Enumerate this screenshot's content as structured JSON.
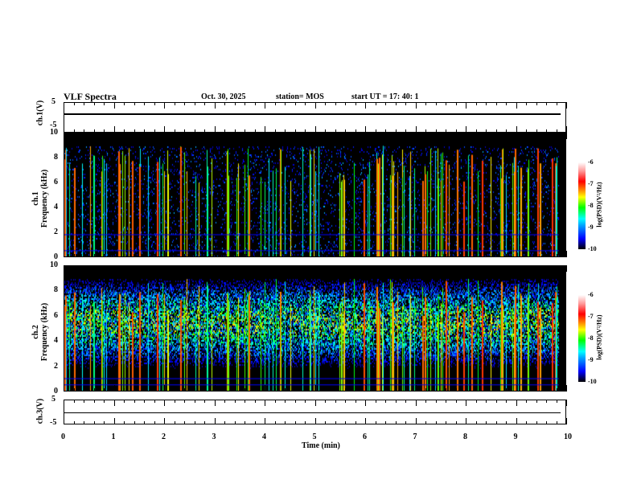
{
  "header": {
    "title": "VLF Spectra",
    "date": "Oct. 30, 2025",
    "station": "station= MOS",
    "start": "start  UT =   17: 40: 1"
  },
  "chart_data": [
    {
      "type": "line",
      "name": "ch1",
      "ylabel": "ch.1(V)",
      "ylim": [
        -5,
        5
      ],
      "yticks": [
        "5",
        "-5"
      ],
      "value": 0
    },
    {
      "type": "heatmap",
      "name": "ch1-spectrogram",
      "ylabel": "ch.1",
      "ylabel2": "Frequency (kHz)",
      "ylim": [
        0,
        10
      ],
      "yticks": [
        "0",
        "2",
        "4",
        "6",
        "8",
        "10"
      ],
      "colorbar": {
        "label": "log(PSD)(V²/Hz)",
        "ticks": [
          "-6",
          "-7",
          "-8",
          "-9",
          "-10"
        ],
        "range": [
          -10,
          -6
        ]
      }
    },
    {
      "type": "heatmap",
      "name": "ch2-spectrogram",
      "ylabel": "ch.2",
      "ylabel2": "Frequency (kHz)",
      "ylim": [
        0,
        10
      ],
      "yticks": [
        "0",
        "2",
        "4",
        "6",
        "8",
        "10"
      ],
      "colorbar": {
        "label": "log(PSD)(V²/Hz)",
        "ticks": [
          "-6",
          "-7",
          "-8",
          "-9",
          "-10"
        ],
        "range": [
          -10,
          -6
        ]
      }
    },
    {
      "type": "line",
      "name": "ch3",
      "ylabel": "ch.3(V)",
      "ylim": [
        -5,
        5
      ],
      "yticks": [
        "5",
        "-5"
      ],
      "value": -1.5
    }
  ],
  "xaxis": {
    "label": "Time (min)",
    "ticks": [
      "0",
      "1",
      "2",
      "3",
      "4",
      "5",
      "6",
      "7",
      "8",
      "9",
      "10"
    ],
    "range": [
      0,
      10
    ]
  }
}
